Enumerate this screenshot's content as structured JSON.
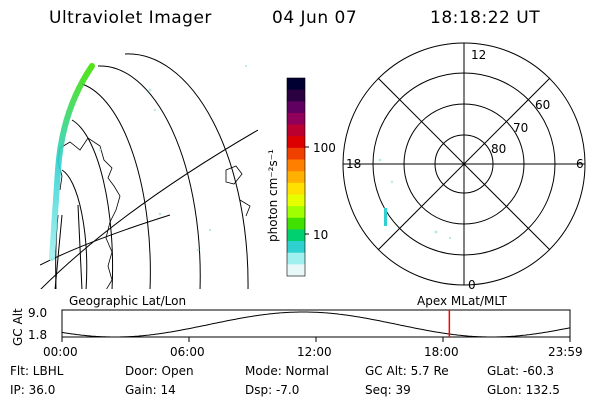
{
  "header": {
    "instrument": "Ultraviolet Imager",
    "date": "04 Jun 07",
    "time": "18:18:22 UT"
  },
  "colorbar": {
    "label": "photon cm⁻²s⁻¹",
    "ticks": [
      "100",
      "10"
    ],
    "colors": [
      "#000033",
      "#2b0040",
      "#600060",
      "#90005a",
      "#bb0030",
      "#dd0000",
      "#f04000",
      "#ff8000",
      "#ffb000",
      "#ffe000",
      "#e6ff00",
      "#a0ff00",
      "#40e000",
      "#00d070",
      "#30d0d0",
      "#a0f0f0",
      "#e8f8f8"
    ]
  },
  "left_panel": {
    "caption": "Geographic Lat/Lon"
  },
  "right_panel": {
    "caption": "Apex  MLat/MLT",
    "mlt_labels": {
      "top": "12",
      "left": "18",
      "right": "6",
      "bottom": "0"
    },
    "lat_labels": [
      "60",
      "70",
      "80"
    ]
  },
  "altitude_plot": {
    "ylabel": "GC Alt",
    "yticks": [
      "9.0",
      "1.8"
    ],
    "xticks": [
      "00:00",
      "06:00",
      "12:00",
      "18:00",
      "23:59"
    ],
    "marker_hour": 18.3,
    "marker_color": "#ff0000"
  },
  "info": {
    "filter": "Flt: LBHL",
    "ip": "IP: 36.0",
    "door": "Door: Open",
    "gain": "Gain: 14",
    "mode": "Mode: Normal",
    "dsp": "Dsp:   -7.0",
    "gc_alt": "GC Alt: 5.7 Re",
    "seq": "Seq: 39",
    "glat": "GLat: -60.3",
    "glon": "GLon: 132.5"
  }
}
